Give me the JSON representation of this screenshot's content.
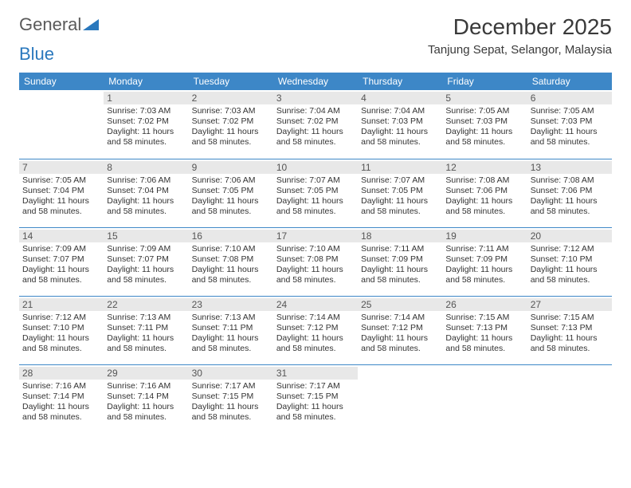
{
  "brand": {
    "word1": "General",
    "word2": "Blue"
  },
  "title": "December 2025",
  "location": "Tanjung Sepat, Selangor, Malaysia",
  "colors": {
    "header_bg": "#3d87c7",
    "header_text": "#ffffff",
    "daynum_bg": "#e8e8e8",
    "border": "#3d87c7",
    "brand_accent": "#2a78bd",
    "text": "#333333",
    "background": "#ffffff"
  },
  "fonts": {
    "body_family": "Arial",
    "title_size_pt": 21,
    "location_size_pt": 11,
    "header_size_pt": 9,
    "cell_size_pt": 8
  },
  "columns": [
    "Sunday",
    "Monday",
    "Tuesday",
    "Wednesday",
    "Thursday",
    "Friday",
    "Saturday"
  ],
  "weeks": [
    [
      null,
      {
        "n": "1",
        "sr": "Sunrise: 7:03 AM",
        "ss": "Sunset: 7:02 PM",
        "d1": "Daylight: 11 hours",
        "d2": "and 58 minutes."
      },
      {
        "n": "2",
        "sr": "Sunrise: 7:03 AM",
        "ss": "Sunset: 7:02 PM",
        "d1": "Daylight: 11 hours",
        "d2": "and 58 minutes."
      },
      {
        "n": "3",
        "sr": "Sunrise: 7:04 AM",
        "ss": "Sunset: 7:02 PM",
        "d1": "Daylight: 11 hours",
        "d2": "and 58 minutes."
      },
      {
        "n": "4",
        "sr": "Sunrise: 7:04 AM",
        "ss": "Sunset: 7:03 PM",
        "d1": "Daylight: 11 hours",
        "d2": "and 58 minutes."
      },
      {
        "n": "5",
        "sr": "Sunrise: 7:05 AM",
        "ss": "Sunset: 7:03 PM",
        "d1": "Daylight: 11 hours",
        "d2": "and 58 minutes."
      },
      {
        "n": "6",
        "sr": "Sunrise: 7:05 AM",
        "ss": "Sunset: 7:03 PM",
        "d1": "Daylight: 11 hours",
        "d2": "and 58 minutes."
      }
    ],
    [
      {
        "n": "7",
        "sr": "Sunrise: 7:05 AM",
        "ss": "Sunset: 7:04 PM",
        "d1": "Daylight: 11 hours",
        "d2": "and 58 minutes."
      },
      {
        "n": "8",
        "sr": "Sunrise: 7:06 AM",
        "ss": "Sunset: 7:04 PM",
        "d1": "Daylight: 11 hours",
        "d2": "and 58 minutes."
      },
      {
        "n": "9",
        "sr": "Sunrise: 7:06 AM",
        "ss": "Sunset: 7:05 PM",
        "d1": "Daylight: 11 hours",
        "d2": "and 58 minutes."
      },
      {
        "n": "10",
        "sr": "Sunrise: 7:07 AM",
        "ss": "Sunset: 7:05 PM",
        "d1": "Daylight: 11 hours",
        "d2": "and 58 minutes."
      },
      {
        "n": "11",
        "sr": "Sunrise: 7:07 AM",
        "ss": "Sunset: 7:05 PM",
        "d1": "Daylight: 11 hours",
        "d2": "and 58 minutes."
      },
      {
        "n": "12",
        "sr": "Sunrise: 7:08 AM",
        "ss": "Sunset: 7:06 PM",
        "d1": "Daylight: 11 hours",
        "d2": "and 58 minutes."
      },
      {
        "n": "13",
        "sr": "Sunrise: 7:08 AM",
        "ss": "Sunset: 7:06 PM",
        "d1": "Daylight: 11 hours",
        "d2": "and 58 minutes."
      }
    ],
    [
      {
        "n": "14",
        "sr": "Sunrise: 7:09 AM",
        "ss": "Sunset: 7:07 PM",
        "d1": "Daylight: 11 hours",
        "d2": "and 58 minutes."
      },
      {
        "n": "15",
        "sr": "Sunrise: 7:09 AM",
        "ss": "Sunset: 7:07 PM",
        "d1": "Daylight: 11 hours",
        "d2": "and 58 minutes."
      },
      {
        "n": "16",
        "sr": "Sunrise: 7:10 AM",
        "ss": "Sunset: 7:08 PM",
        "d1": "Daylight: 11 hours",
        "d2": "and 58 minutes."
      },
      {
        "n": "17",
        "sr": "Sunrise: 7:10 AM",
        "ss": "Sunset: 7:08 PM",
        "d1": "Daylight: 11 hours",
        "d2": "and 58 minutes."
      },
      {
        "n": "18",
        "sr": "Sunrise: 7:11 AM",
        "ss": "Sunset: 7:09 PM",
        "d1": "Daylight: 11 hours",
        "d2": "and 58 minutes."
      },
      {
        "n": "19",
        "sr": "Sunrise: 7:11 AM",
        "ss": "Sunset: 7:09 PM",
        "d1": "Daylight: 11 hours",
        "d2": "and 58 minutes."
      },
      {
        "n": "20",
        "sr": "Sunrise: 7:12 AM",
        "ss": "Sunset: 7:10 PM",
        "d1": "Daylight: 11 hours",
        "d2": "and 58 minutes."
      }
    ],
    [
      {
        "n": "21",
        "sr": "Sunrise: 7:12 AM",
        "ss": "Sunset: 7:10 PM",
        "d1": "Daylight: 11 hours",
        "d2": "and 58 minutes."
      },
      {
        "n": "22",
        "sr": "Sunrise: 7:13 AM",
        "ss": "Sunset: 7:11 PM",
        "d1": "Daylight: 11 hours",
        "d2": "and 58 minutes."
      },
      {
        "n": "23",
        "sr": "Sunrise: 7:13 AM",
        "ss": "Sunset: 7:11 PM",
        "d1": "Daylight: 11 hours",
        "d2": "and 58 minutes."
      },
      {
        "n": "24",
        "sr": "Sunrise: 7:14 AM",
        "ss": "Sunset: 7:12 PM",
        "d1": "Daylight: 11 hours",
        "d2": "and 58 minutes."
      },
      {
        "n": "25",
        "sr": "Sunrise: 7:14 AM",
        "ss": "Sunset: 7:12 PM",
        "d1": "Daylight: 11 hours",
        "d2": "and 58 minutes."
      },
      {
        "n": "26",
        "sr": "Sunrise: 7:15 AM",
        "ss": "Sunset: 7:13 PM",
        "d1": "Daylight: 11 hours",
        "d2": "and 58 minutes."
      },
      {
        "n": "27",
        "sr": "Sunrise: 7:15 AM",
        "ss": "Sunset: 7:13 PM",
        "d1": "Daylight: 11 hours",
        "d2": "and 58 minutes."
      }
    ],
    [
      {
        "n": "28",
        "sr": "Sunrise: 7:16 AM",
        "ss": "Sunset: 7:14 PM",
        "d1": "Daylight: 11 hours",
        "d2": "and 58 minutes."
      },
      {
        "n": "29",
        "sr": "Sunrise: 7:16 AM",
        "ss": "Sunset: 7:14 PM",
        "d1": "Daylight: 11 hours",
        "d2": "and 58 minutes."
      },
      {
        "n": "30",
        "sr": "Sunrise: 7:17 AM",
        "ss": "Sunset: 7:15 PM",
        "d1": "Daylight: 11 hours",
        "d2": "and 58 minutes."
      },
      {
        "n": "31",
        "sr": "Sunrise: 7:17 AM",
        "ss": "Sunset: 7:15 PM",
        "d1": "Daylight: 11 hours",
        "d2": "and 58 minutes."
      },
      null,
      null,
      null
    ]
  ]
}
